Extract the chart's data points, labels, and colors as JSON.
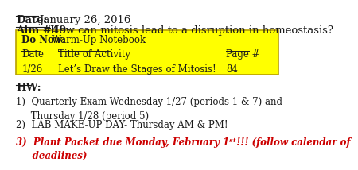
{
  "bg_color": "#ffffff",
  "date_label": "Date:",
  "date_text": "January 26, 2016",
  "aim_label": "Aim #49:",
  "aim_text": "How can mitosis lead to a disruption in homeostasis?",
  "box_bg": "#ffff00",
  "box_border": "#b8a000",
  "donow_label": "Do Now:",
  "donow_text": "Warm-Up Notebook",
  "col_date": "Date",
  "col_title": "Title of Activity",
  "col_page": "Page #",
  "row_date": "1/26",
  "row_activity": "Let’s Draw the Stages of Mitosis!",
  "row_page": "84",
  "hw_label": "HW:",
  "hw1": "1)  Quarterly Exam Wednesday 1/27 (periods 1 & 7) and\n     Thursday 1/28 (period 5)",
  "hw2": "2)  LAB MAKE-UP DAY- Thursday AM & PM!",
  "hw3": "3)  Plant Packet due Monday, February 1ˢᵗ!!! (follow calendar of\n     deadlines)",
  "hw3_color": "#cc0000",
  "font_family": "DejaVu Serif",
  "main_fontsize": 9.5,
  "small_fontsize": 8.5,
  "text_color": "#1a1a1a"
}
